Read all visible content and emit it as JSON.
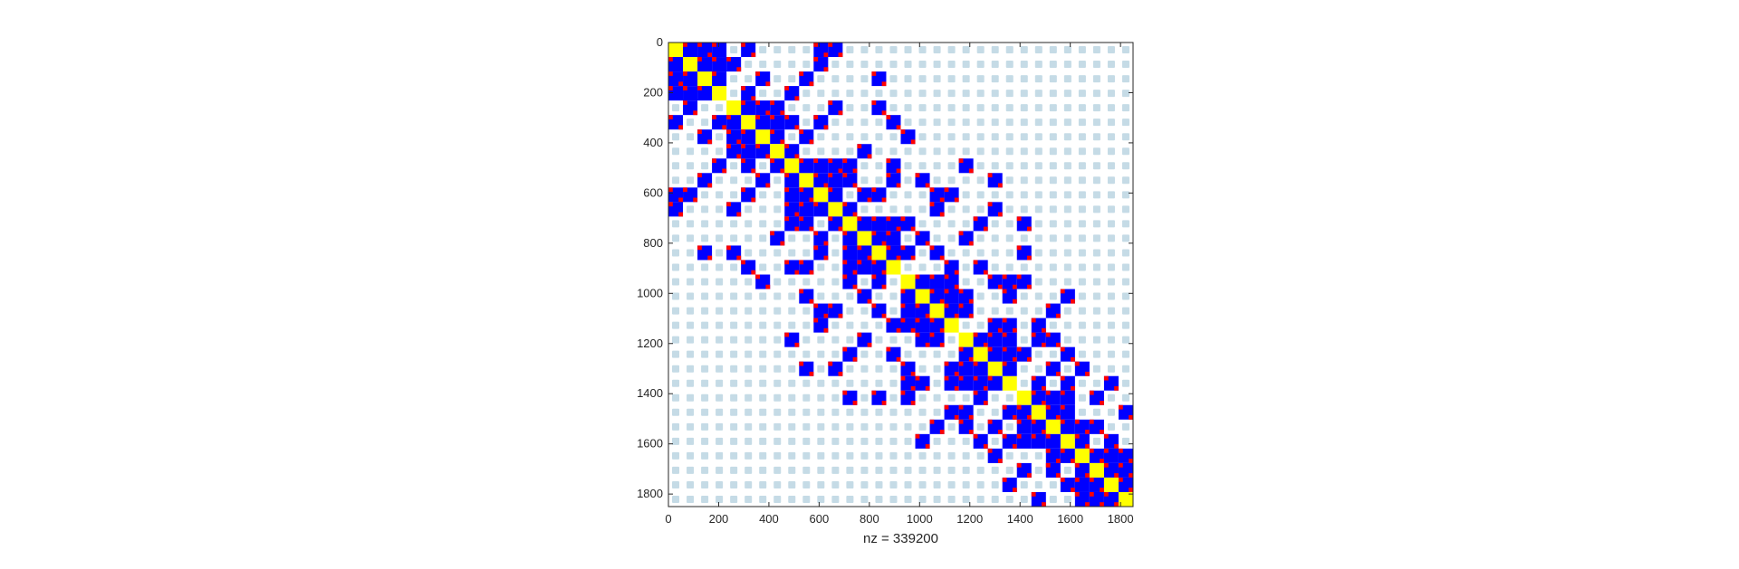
{
  "chart_data": {
    "type": "heatmap",
    "subtype": "sparsity-pattern",
    "title": "",
    "xlabel": "nz = 339200",
    "ylabel": "",
    "xlim": [
      0,
      1850
    ],
    "ylim": [
      0,
      1850
    ],
    "y_axis_reversed": true,
    "grid": false,
    "x_ticks": [
      0,
      200,
      400,
      600,
      800,
      1000,
      1200,
      1400,
      1600,
      1800
    ],
    "y_ticks": [
      0,
      200,
      400,
      600,
      800,
      1000,
      1200,
      1400,
      1600,
      1800
    ],
    "x_tick_labels": [
      "0",
      "200",
      "400",
      "600",
      "800",
      "1000",
      "1200",
      "1400",
      "1600",
      "1800"
    ],
    "y_tick_labels": [
      "0",
      "200",
      "400",
      "600",
      "800",
      "1000",
      "1200",
      "1400",
      "1600",
      "1800"
    ],
    "block_grid_n": 32,
    "block_size": 57.8125,
    "cluster_size": 4,
    "colors": {
      "background_block": "#c5dbe6",
      "off_diagonal_block": "#0000ff",
      "block_corner": "#ff0000",
      "diagonal_block": "#ffff00",
      "axis": "#262626"
    },
    "blocks": [
      [
        0,
        2
      ],
      [
        0,
        5
      ],
      [
        0,
        10
      ],
      [
        0,
        11
      ],
      [
        1,
        4
      ],
      [
        1,
        10
      ],
      [
        2,
        6
      ],
      [
        2,
        9
      ],
      [
        2,
        14
      ],
      [
        3,
        5
      ],
      [
        3,
        8
      ],
      [
        4,
        6
      ],
      [
        4,
        7
      ],
      [
        4,
        11
      ],
      [
        4,
        14
      ],
      [
        5,
        8
      ],
      [
        5,
        10
      ],
      [
        5,
        15
      ],
      [
        6,
        7
      ],
      [
        6,
        9
      ],
      [
        6,
        16
      ],
      [
        7,
        8
      ],
      [
        7,
        13
      ],
      [
        8,
        11
      ],
      [
        8,
        12
      ],
      [
        8,
        15
      ],
      [
        8,
        20
      ],
      [
        9,
        10
      ],
      [
        9,
        12
      ],
      [
        9,
        15
      ],
      [
        9,
        17
      ],
      [
        9,
        22
      ],
      [
        10,
        13
      ],
      [
        10,
        14
      ],
      [
        10,
        18
      ],
      [
        10,
        19
      ],
      [
        11,
        12
      ],
      [
        11,
        18
      ],
      [
        11,
        22
      ],
      [
        12,
        15
      ],
      [
        12,
        16
      ],
      [
        12,
        21
      ],
      [
        12,
        24
      ],
      [
        13,
        14
      ],
      [
        13,
        17
      ],
      [
        13,
        20
      ],
      [
        14,
        15
      ],
      [
        14,
        16
      ],
      [
        14,
        18
      ],
      [
        14,
        24
      ],
      [
        15,
        19
      ],
      [
        15,
        21
      ],
      [
        16,
        19
      ],
      [
        16,
        22
      ],
      [
        16,
        23
      ],
      [
        16,
        24
      ],
      [
        17,
        18
      ],
      [
        17,
        20
      ],
      [
        17,
        23
      ],
      [
        17,
        27
      ],
      [
        18,
        19
      ],
      [
        18,
        20
      ],
      [
        18,
        26
      ],
      [
        19,
        22
      ],
      [
        19,
        23
      ],
      [
        19,
        25
      ],
      [
        20,
        21
      ],
      [
        20,
        25
      ],
      [
        20,
        26
      ],
      [
        21,
        23
      ],
      [
        21,
        24
      ],
      [
        21,
        27
      ],
      [
        22,
        26
      ],
      [
        22,
        28
      ],
      [
        23,
        25
      ],
      [
        23,
        27
      ],
      [
        23,
        30
      ],
      [
        24,
        25
      ],
      [
        24,
        29
      ],
      [
        25,
        26
      ],
      [
        25,
        31
      ],
      [
        26,
        28
      ],
      [
        26,
        29
      ],
      [
        27,
        28
      ],
      [
        27,
        30
      ],
      [
        28,
        29
      ],
      [
        28,
        31
      ],
      [
        29,
        30
      ],
      [
        29,
        31
      ],
      [
        30,
        31
      ]
    ]
  }
}
